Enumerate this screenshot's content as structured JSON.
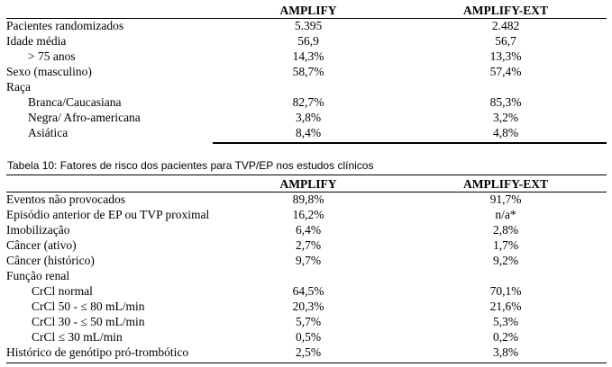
{
  "table1": {
    "headers": [
      "",
      "AMPLIFY",
      "AMPLIFY-EXT"
    ],
    "rows": [
      {
        "label": "Pacientes randomizados",
        "amplify": "5.395",
        "ext": "2.482",
        "indent": 0
      },
      {
        "label": "Idade média",
        "amplify": "56,9",
        "ext": "56,7",
        "indent": 0
      },
      {
        "label": "> 75 anos",
        "amplify": "14,3%",
        "ext": "13,3%",
        "indent": 1
      },
      {
        "label": "Sexo (masculino)",
        "amplify": "58,7%",
        "ext": "57,4%",
        "indent": 0
      },
      {
        "label": "Raça",
        "amplify": "",
        "ext": "",
        "indent": 0
      },
      {
        "label": "Branca/Caucasiana",
        "amplify": "82,7%",
        "ext": "85,3%",
        "indent": 1
      },
      {
        "label": "Negra/ Afro-americana",
        "amplify": "3,8%",
        "ext": "3,2%",
        "indent": 1
      },
      {
        "label": "Asiática",
        "amplify": "8,4%",
        "ext": "4,8%",
        "indent": 1
      }
    ]
  },
  "caption": "Tabela 10: Fatores de risco dos pacientes para TVP/EP nos estudos clínicos",
  "table2": {
    "headers": [
      "",
      "AMPLIFY",
      "AMPLIFY-EXT"
    ],
    "rows": [
      {
        "label": "Eventos não provocados",
        "amplify": "89,8%",
        "ext": "91,7%",
        "indent": 0
      },
      {
        "label": "Episódio anterior de EP ou TVP proximal",
        "amplify": "16,2%",
        "ext": "n/a*",
        "indent": 0
      },
      {
        "label": "Imobilização",
        "amplify": "6,4%",
        "ext": "2,8%",
        "indent": 0
      },
      {
        "label": "Câncer (ativo)",
        "amplify": "2,7%",
        "ext": "1,7%",
        "indent": 0
      },
      {
        "label": "Câncer (histórico)",
        "amplify": "9,7%",
        "ext": "9,2%",
        "indent": 0
      },
      {
        "label": "Função renal",
        "amplify": "",
        "ext": "",
        "indent": 0
      },
      {
        "label": "CrCl normal",
        "amplify": "64,5%",
        "ext": "70,1%",
        "indent": 2
      },
      {
        "label": "CrCl 50 - ≤ 80 mL/min",
        "amplify": "20,3%",
        "ext": "21,6%",
        "indent": 2
      },
      {
        "label": "CrCl 30 - ≤ 50 mL/min",
        "amplify": "5,7%",
        "ext": "5,3%",
        "indent": 2
      },
      {
        "label": "CrCl ≤ 30 mL/min",
        "amplify": "0,5%",
        "ext": "0,2%",
        "indent": 2
      },
      {
        "label": "Histórico de genótipo pró-trombótico",
        "amplify": "2,5%",
        "ext": "3,8%",
        "indent": 0
      }
    ]
  }
}
